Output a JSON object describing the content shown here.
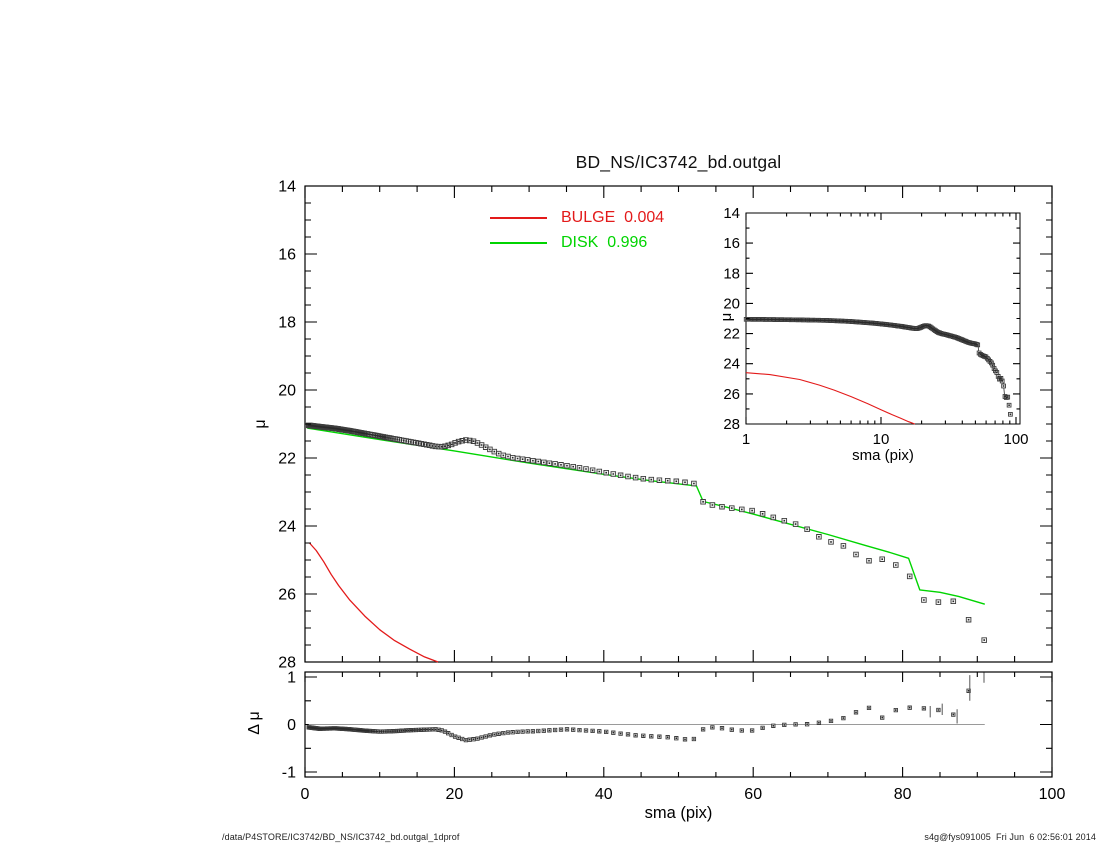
{
  "title": "BD_NS/IC3742_bd.outgal",
  "legend": {
    "bulge_label": "BULGE  0.004",
    "disk_label": "DISK  0.996"
  },
  "axes": {
    "main_ylabel": "μ",
    "resid_ylabel": "Δ μ",
    "xlabel": "sma (pix)",
    "inset_ylabel": "μ",
    "inset_xlabel": "sma (pix)"
  },
  "footer": {
    "left": "/data/P4STORE/IC3742/BD_NS/IC3742_bd.outgal_1dprof",
    "right": "s4g@fys091005  Fri Jun  6 02:56:01 2014"
  },
  "colors": {
    "bulge": "#e31a1a",
    "disk": "#00d400",
    "data_stroke": "#3d3d3d",
    "data_fill": "#f3f3f3",
    "data_dot": "#2a2a2a",
    "axis": "#000000",
    "zero_line": "#9a9a9a",
    "error_bar": "#555555"
  },
  "chart_data": [
    {
      "id": "main",
      "type": "scatter",
      "title": "BD_NS/IC3742_bd.outgal",
      "xscale": "linear",
      "xlabel": "sma (pix)",
      "ylabel": "μ",
      "xlim": [
        0,
        100
      ],
      "ylim": [
        28,
        14
      ],
      "x_ticks": [
        0,
        20,
        40,
        60,
        80,
        100
      ],
      "x_minor": 5,
      "y_ticks": [
        14,
        16,
        18,
        20,
        22,
        24,
        26,
        28
      ],
      "y_minor": 0.5,
      "grid": false,
      "legend_position": "top-center",
      "sampling": {
        "note": "symbols sampled geometrically in sma",
        "start": 0.5,
        "ratio": 1.0235,
        "max": 91
      },
      "series": [
        {
          "name": "galaxy profile",
          "type": "squares",
          "points": [
            [
              0.5,
              21.04
            ],
            [
              2,
              21.08
            ],
            [
              4,
              21.13
            ],
            [
              6,
              21.2
            ],
            [
              8,
              21.28
            ],
            [
              10,
              21.36
            ],
            [
              12,
              21.44
            ],
            [
              14,
              21.52
            ],
            [
              16,
              21.6
            ],
            [
              17.5,
              21.66
            ],
            [
              18.5,
              21.67
            ],
            [
              19.5,
              21.61
            ],
            [
              20.5,
              21.52
            ],
            [
              21.5,
              21.47
            ],
            [
              22.5,
              21.5
            ],
            [
              23.5,
              21.6
            ],
            [
              24.5,
              21.72
            ],
            [
              25.5,
              21.83
            ],
            [
              26.5,
              21.92
            ],
            [
              28,
              22.0
            ],
            [
              30,
              22.06
            ],
            [
              32,
              22.13
            ],
            [
              34,
              22.19
            ],
            [
              36,
              22.26
            ],
            [
              38,
              22.34
            ],
            [
              40,
              22.42
            ],
            [
              42,
              22.5
            ],
            [
              44,
              22.57
            ],
            [
              46,
              22.63
            ],
            [
              48,
              22.66
            ],
            [
              50,
              22.69
            ],
            [
              52.4,
              22.76
            ],
            [
              52.9,
              23.25
            ],
            [
              54,
              23.36
            ],
            [
              56,
              23.44
            ],
            [
              58,
              23.5
            ],
            [
              60,
              23.55
            ],
            [
              61,
              23.62
            ],
            [
              62,
              23.7
            ],
            [
              63.5,
              23.8
            ],
            [
              65,
              23.9
            ],
            [
              66.5,
              24.0
            ],
            [
              68,
              24.2
            ],
            [
              69.5,
              24.42
            ],
            [
              71,
              24.5
            ],
            [
              72.5,
              24.62
            ],
            [
              74,
              24.88
            ],
            [
              75.5,
              25.02
            ],
            [
              77,
              24.95
            ],
            [
              79,
              25.14
            ],
            [
              80.5,
              25.28
            ],
            [
              82.5,
              26.18
            ],
            [
              84,
              26.17
            ],
            [
              85.5,
              26.3
            ],
            [
              87.5,
              26.17
            ],
            [
              89,
              26.83
            ],
            [
              91,
              27.38
            ]
          ]
        },
        {
          "name": "DISK  0.996",
          "type": "line",
          "color": "disk",
          "points": [
            [
              0.3,
              21.12
            ],
            [
              10,
              21.46
            ],
            [
              20,
              21.79
            ],
            [
              30,
              22.15
            ],
            [
              40,
              22.48
            ],
            [
              46,
              22.66
            ],
            [
              52.4,
              22.82
            ],
            [
              53.3,
              23.28
            ],
            [
              56,
              23.42
            ],
            [
              60,
              23.65
            ],
            [
              65,
              23.95
            ],
            [
              70,
              24.25
            ],
            [
              75,
              24.57
            ],
            [
              78,
              24.76
            ],
            [
              80.8,
              24.95
            ],
            [
              82.3,
              25.88
            ],
            [
              85,
              25.95
            ],
            [
              87.5,
              26.07
            ],
            [
              91,
              26.3
            ]
          ]
        },
        {
          "name": "BULGE  0.004",
          "type": "line",
          "color": "bulge",
          "points": [
            [
              0.6,
              24.5
            ],
            [
              1.5,
              24.72
            ],
            [
              2.5,
              25.05
            ],
            [
              3.5,
              25.42
            ],
            [
              4.5,
              25.75
            ],
            [
              6,
              26.18
            ],
            [
              8,
              26.65
            ],
            [
              10,
              27.05
            ],
            [
              12,
              27.37
            ],
            [
              14,
              27.62
            ],
            [
              16,
              27.85
            ],
            [
              17.8,
              28.0
            ]
          ]
        }
      ]
    },
    {
      "id": "inset",
      "type": "scatter",
      "xscale": "log",
      "xlabel": "sma (pix)",
      "ylabel": "μ",
      "xlim": [
        1,
        107
      ],
      "ylim": [
        28,
        14
      ],
      "x_ticks": [
        1,
        10,
        100
      ],
      "y_ticks": [
        14,
        16,
        18,
        20,
        22,
        24,
        26,
        28
      ],
      "y_minor": 1,
      "grid": false,
      "series": [
        {
          "name": "galaxy profile",
          "type": "squares+line",
          "source": [
            0,
            0
          ]
        },
        {
          "name": "BULGE  0.004",
          "type": "line",
          "color": "bulge",
          "source": [
            0,
            2
          ]
        }
      ]
    },
    {
      "id": "residual",
      "type": "scatter",
      "xscale": "linear",
      "xlabel": "sma (pix)",
      "ylabel": "Δ μ",
      "xlim": [
        0,
        100
      ],
      "ylim": [
        -1.1,
        1.1
      ],
      "x_ticks": [
        0,
        20,
        40,
        60,
        80,
        100
      ],
      "x_minor": 5,
      "y_ticks": [
        -1,
        0,
        1
      ],
      "y_minor": 0.5,
      "zero_line": [
        0.5,
        91
      ],
      "series": [
        {
          "name": "data - model",
          "type": "squares",
          "points": [
            [
              0.5,
              -0.06
            ],
            [
              2,
              -0.09
            ],
            [
              4,
              -0.08
            ],
            [
              6,
              -0.1
            ],
            [
              8,
              -0.13
            ],
            [
              10,
              -0.15
            ],
            [
              12,
              -0.14
            ],
            [
              14,
              -0.12
            ],
            [
              16,
              -0.11
            ],
            [
              17.5,
              -0.1
            ],
            [
              18.5,
              -0.13
            ],
            [
              20,
              -0.25
            ],
            [
              21.5,
              -0.33
            ],
            [
              23,
              -0.3
            ],
            [
              25,
              -0.22
            ],
            [
              27,
              -0.17
            ],
            [
              29,
              -0.15
            ],
            [
              31,
              -0.14
            ],
            [
              33,
              -0.12
            ],
            [
              35,
              -0.1
            ],
            [
              37,
              -0.12
            ],
            [
              40,
              -0.15
            ],
            [
              42.2,
              -0.19
            ],
            [
              44.4,
              -0.23
            ],
            [
              46.6,
              -0.25
            ],
            [
              48.9,
              -0.27
            ],
            [
              50.6,
              -0.31
            ],
            [
              52,
              -0.32
            ],
            [
              52.9,
              -0.12
            ],
            [
              53.8,
              -0.08
            ],
            [
              55,
              -0.05
            ],
            [
              56.5,
              -0.1
            ],
            [
              58,
              -0.12
            ],
            [
              59.5,
              -0.14
            ],
            [
              61,
              -0.08
            ],
            [
              62.5,
              -0.03
            ],
            [
              64,
              -0.01
            ],
            [
              65.5,
              0.0
            ],
            [
              67,
              0.01
            ],
            [
              68.5,
              -0.01
            ],
            [
              69.5,
              0.14
            ],
            [
              70.5,
              0.07
            ],
            [
              71.8,
              0.13
            ],
            [
              73,
              0.15
            ],
            [
              74.3,
              0.33
            ],
            [
              75.6,
              0.35
            ],
            [
              77.4,
              0.13
            ],
            [
              79,
              0.3
            ],
            [
              80.6,
              0.34
            ],
            [
              82.1,
              0.4
            ],
            [
              83.7,
              0.27
            ],
            [
              85.3,
              0.32
            ],
            [
              87.3,
              0.17
            ],
            [
              89,
              0.77
            ],
            [
              90.9,
              1.18
            ]
          ]
        }
      ],
      "error_bars": [
        [
          83.7,
          0.27,
          0.12
        ],
        [
          85.3,
          0.32,
          0.12
        ],
        [
          87.3,
          0.17,
          0.15
        ],
        [
          89,
          0.77,
          0.27
        ],
        [
          90.9,
          1.18,
          0.3
        ]
      ]
    }
  ]
}
